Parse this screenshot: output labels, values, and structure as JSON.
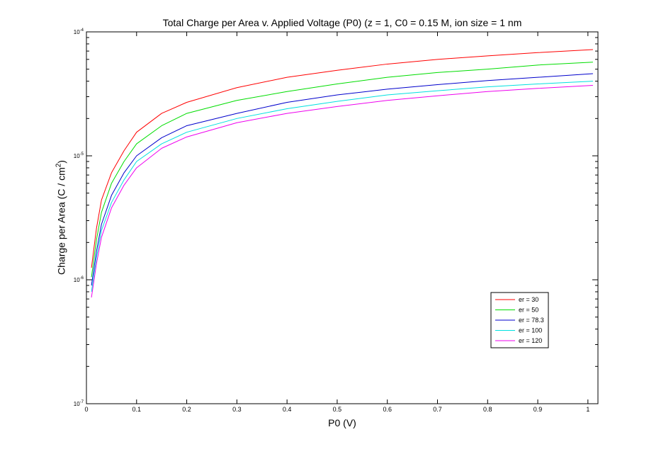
{
  "chart_data": {
    "type": "line",
    "title": "Total Charge per Area v. Applied Voltage (P0) (z = 1, C0 = 0.15 M, ion size = 1 nm",
    "xlabel": "P0 (V)",
    "ylabel": "Charge per Area (C / cm",
    "ylabel_superscript": "2",
    "ylabel_suffix": ")",
    "xlim": [
      0,
      1.02
    ],
    "ylim": [
      1e-07,
      0.0001
    ],
    "yscale": "log",
    "x_ticks": [
      0,
      0.1,
      0.2,
      0.3,
      0.4,
      0.5,
      0.6,
      0.7,
      0.8,
      0.9,
      1
    ],
    "x_tick_labels": [
      "0",
      "0.1",
      "0.2",
      "0.3",
      "0.4",
      "0.5",
      "0.6",
      "0.7",
      "0.8",
      "0.9",
      "1"
    ],
    "y_ticks": [
      1e-07,
      1e-06,
      1e-05,
      0.0001
    ],
    "y_tick_labels": [
      {
        "base": "10",
        "exp": "-7"
      },
      {
        "base": "10",
        "exp": "-6"
      },
      {
        "base": "10",
        "exp": "-5"
      },
      {
        "base": "10",
        "exp": "-4"
      }
    ],
    "grid": false,
    "legend_position": "bottom-right",
    "x": [
      0.01,
      0.02,
      0.03,
      0.05,
      0.075,
      0.1,
      0.15,
      0.2,
      0.3,
      0.4,
      0.5,
      0.6,
      0.7,
      0.8,
      0.9,
      1.01
    ],
    "series": [
      {
        "name": "er = 30",
        "color": "#ff0000",
        "values": [
          1.25e-06,
          2.6e-06,
          4.4e-06,
          7.3e-06,
          1.1e-05,
          1.55e-05,
          2.2e-05,
          2.7e-05,
          3.55e-05,
          4.3e-05,
          4.9e-05,
          5.5e-05,
          6e-05,
          6.4e-05,
          6.8e-05,
          7.2e-05
        ]
      },
      {
        "name": "er = 50",
        "color": "#00dd00",
        "values": [
          1.05e-06,
          2.1e-06,
          3.5e-06,
          6e-06,
          9e-06,
          1.25e-05,
          1.75e-05,
          2.2e-05,
          2.8e-05,
          3.3e-05,
          3.8e-05,
          4.3e-05,
          4.7e-05,
          5e-05,
          5.4e-05,
          5.7e-05
        ]
      },
      {
        "name": "er = 78.3",
        "color": "#0000cc",
        "values": [
          9e-07,
          1.7e-06,
          2.8e-06,
          4.8e-06,
          7.3e-06,
          1e-05,
          1.4e-05,
          1.75e-05,
          2.2e-05,
          2.7e-05,
          3.1e-05,
          3.45e-05,
          3.75e-05,
          4.05e-05,
          4.3e-05,
          4.6e-05
        ]
      },
      {
        "name": "er = 100",
        "color": "#00e0e0",
        "values": [
          8e-07,
          1.5e-06,
          2.5e-06,
          4.2e-06,
          6.4e-06,
          9e-06,
          1.25e-05,
          1.55e-05,
          2e-05,
          2.4e-05,
          2.75e-05,
          3.1e-05,
          3.35e-05,
          3.6e-05,
          3.8e-05,
          4e-05
        ]
      },
      {
        "name": "er = 120",
        "color": "#ee00ee",
        "values": [
          7.2e-07,
          1.35e-06,
          2.2e-06,
          3.8e-06,
          5.8e-06,
          8e-06,
          1.15e-05,
          1.42e-05,
          1.85e-05,
          2.2e-05,
          2.5e-05,
          2.8e-05,
          3.05e-05,
          3.3e-05,
          3.5e-05,
          3.7e-05
        ]
      }
    ]
  }
}
